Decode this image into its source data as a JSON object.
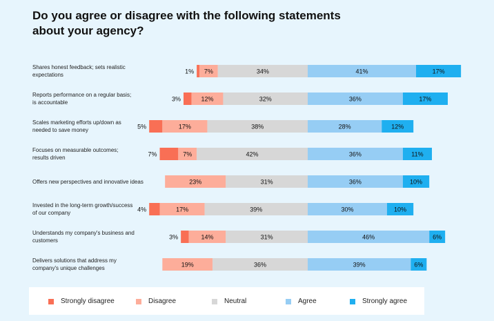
{
  "chart_data": {
    "type": "bar",
    "orientation": "horizontal",
    "stacked": "diverging",
    "title": "Do you agree or disagree with the following statements about your agency?",
    "categories": [
      "Shares honest feedback; sets realistic expectations",
      "Reports performance on a regular basis; is accountable",
      "Scales marketing efforts up/down as needed to save money",
      "Focuses on measurable outcomes; results driven",
      "Offers new perspectives and innovative ideas",
      "Invested in the long-term growth/success of our company",
      "Understands my company's business and customers",
      "Delivers solutions that address my company's unique challenges"
    ],
    "series": [
      {
        "name": "Strongly disagree",
        "color": "#f96f55",
        "values": [
          1,
          3,
          5,
          7,
          0,
          4,
          3,
          0
        ]
      },
      {
        "name": "Disagree",
        "color": "#fdad9a",
        "values": [
          7,
          12,
          17,
          7,
          23,
          17,
          14,
          19
        ]
      },
      {
        "name": "Neutral",
        "color": "#d7d7d7",
        "values": [
          34,
          32,
          38,
          42,
          31,
          39,
          31,
          36
        ]
      },
      {
        "name": "Agree",
        "color": "#96cdf4",
        "values": [
          41,
          36,
          28,
          36,
          36,
          30,
          46,
          39
        ]
      },
      {
        "name": "Strongly agree",
        "color": "#1faff0",
        "values": [
          17,
          17,
          12,
          11,
          10,
          10,
          6,
          6
        ]
      }
    ],
    "value_format": "percent",
    "legend_position": "bottom",
    "grid": false
  }
}
